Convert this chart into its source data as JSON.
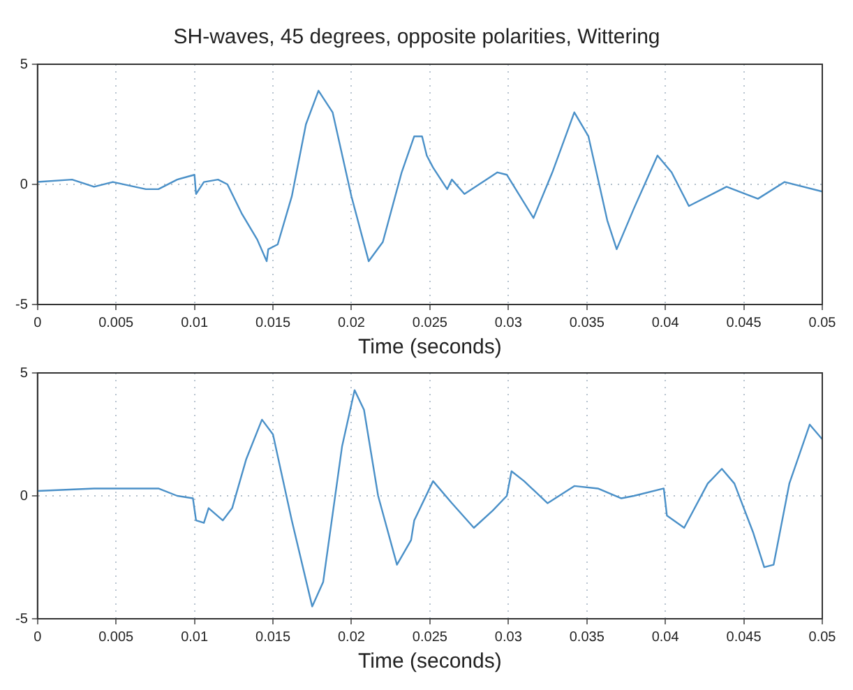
{
  "chart_data": [
    {
      "type": "line",
      "title": "SH-waves, 45 degrees, opposite polarities, Wittering",
      "xlabel": "Time (seconds)",
      "xlim": [
        0,
        0.05
      ],
      "xticks": [
        0,
        0.005,
        0.01,
        0.015,
        0.02,
        0.025,
        0.03,
        0.035,
        0.04,
        0.045,
        0.05
      ],
      "ylim": [
        -5,
        5
      ],
      "yticks": [
        -5,
        0,
        5
      ],
      "grid": true,
      "marker": "none",
      "line_style": "solid",
      "series": [
        {
          "color": "#4a90c8",
          "x": [
            0,
            0.0022,
            0.0036,
            0.0048,
            0.0069,
            0.0077,
            0.0089,
            0.01,
            0.0101,
            0.0106,
            0.0115,
            0.0121,
            0.013,
            0.014,
            0.0146,
            0.0147,
            0.0153,
            0.0162,
            0.0171,
            0.0179,
            0.0188,
            0.02,
            0.0211,
            0.022,
            0.0232,
            0.024,
            0.0245,
            0.0248,
            0.0252,
            0.0261,
            0.0264,
            0.0272,
            0.0293,
            0.0299,
            0.0316,
            0.0328,
            0.0342,
            0.0351,
            0.0363,
            0.0369,
            0.038,
            0.0395,
            0.0404,
            0.0415,
            0.0439,
            0.0459,
            0.0476,
            0.05
          ],
          "values": [
            0.1,
            0.2,
            -0.1,
            0.1,
            -0.2,
            -0.2,
            0.2,
            0.4,
            -0.4,
            0.1,
            0.2,
            0,
            -1.2,
            -2.3,
            -3.2,
            -2.7,
            -2.5,
            -0.5,
            2.5,
            3.9,
            3.0,
            -0.5,
            -3.2,
            -2.4,
            0.5,
            2.0,
            2.0,
            1.2,
            0.7,
            -0.2,
            0.2,
            -0.4,
            0.5,
            0.4,
            -1.4,
            0.5,
            3.0,
            2.0,
            -1.5,
            -2.7,
            -1.0,
            1.2,
            0.5,
            -0.9,
            -0.1,
            -0.6,
            0.1,
            -0.3
          ]
        }
      ]
    },
    {
      "type": "line",
      "xlabel": "Time (seconds)",
      "xlim": [
        0,
        0.05
      ],
      "xticks": [
        0,
        0.005,
        0.01,
        0.015,
        0.02,
        0.025,
        0.03,
        0.035,
        0.04,
        0.045,
        0.05
      ],
      "ylim": [
        -5,
        5
      ],
      "yticks": [
        -5,
        0,
        5
      ],
      "grid": true,
      "marker": "none",
      "line_style": "solid",
      "series": [
        {
          "color": "#4a90c8",
          "x": [
            0,
            0.0036,
            0.0077,
            0.0089,
            0.0099,
            0.0101,
            0.0106,
            0.0109,
            0.0118,
            0.0124,
            0.0133,
            0.0143,
            0.015,
            0.0162,
            0.0175,
            0.0182,
            0.0194,
            0.0202,
            0.0208,
            0.0217,
            0.0229,
            0.0238,
            0.024,
            0.0252,
            0.0264,
            0.0278,
            0.029,
            0.0299,
            0.0302,
            0.031,
            0.0325,
            0.0342,
            0.0357,
            0.0372,
            0.038,
            0.0399,
            0.0401,
            0.0412,
            0.0427,
            0.0436,
            0.0444,
            0.0456,
            0.0463,
            0.0469,
            0.0479,
            0.0492,
            0.05
          ],
          "values": [
            0.2,
            0.3,
            0.3,
            0,
            -0.1,
            -1.0,
            -1.1,
            -0.5,
            -1.0,
            -0.5,
            1.5,
            3.1,
            2.5,
            -1.0,
            -4.5,
            -3.5,
            2.0,
            4.3,
            3.5,
            0,
            -2.8,
            -1.8,
            -1.0,
            0.6,
            -0.3,
            -1.3,
            -0.6,
            0,
            1.0,
            0.6,
            -0.3,
            0.4,
            0.3,
            -0.1,
            0,
            0.3,
            -0.8,
            -1.3,
            0.5,
            1.1,
            0.5,
            -1.5,
            -2.9,
            -2.8,
            0.5,
            2.9,
            2.3
          ]
        }
      ]
    }
  ]
}
